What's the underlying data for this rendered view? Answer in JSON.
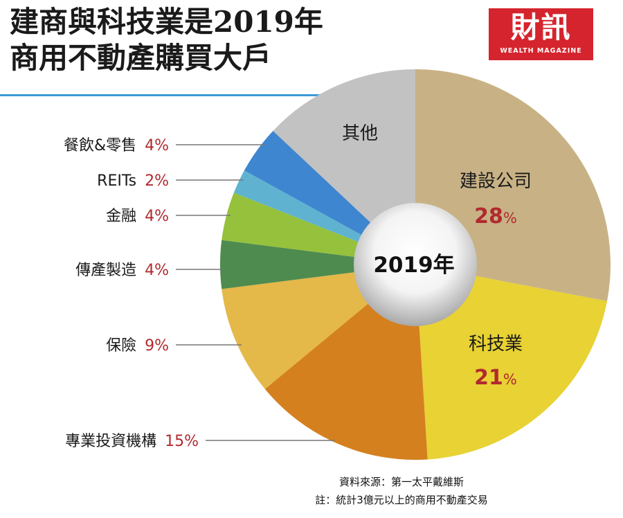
{
  "title_lines": [
    "建商與科技業是2019年",
    "商用不動產購買大戶"
  ],
  "brand": {
    "name": "財訊",
    "subtitle": "WEALTH MAGAZINE",
    "color": "#d5242d"
  },
  "center_label": "2019年",
  "pct_color": "#b02a2f",
  "chart_data": {
    "type": "pie",
    "variant": "donut",
    "slices": [
      {
        "label": "建設公司",
        "value": 28,
        "value_text": "28",
        "unit": "%",
        "color": "#c8b285",
        "label_position": "inside"
      },
      {
        "label": "科技業",
        "value": 21,
        "value_text": "21",
        "unit": "%",
        "color": "#e8d234",
        "label_position": "inside"
      },
      {
        "label": "專業投資機構",
        "value": 15,
        "value_text": "15%",
        "unit": "",
        "color": "#d5801f",
        "label_position": "outside-left"
      },
      {
        "label": "保險",
        "value": 9,
        "value_text": "9%",
        "unit": "",
        "color": "#e5b84a",
        "label_position": "outside-left"
      },
      {
        "label": "傳產製造",
        "value": 4,
        "value_text": "4%",
        "unit": "",
        "color": "#4e8b4f",
        "label_position": "outside-left"
      },
      {
        "label": "金融",
        "value": 4,
        "value_text": "4%",
        "unit": "",
        "color": "#95c13c",
        "label_position": "outside-left"
      },
      {
        "label": "REITs",
        "value": 2,
        "value_text": "2%",
        "unit": "",
        "color": "#5fb3d0",
        "label_position": "outside-left"
      },
      {
        "label": "餐飲&零售",
        "value": 4,
        "value_text": "4%",
        "unit": "",
        "color": "#3f86d0",
        "label_position": "outside-left"
      },
      {
        "label": "其他",
        "value": 13,
        "value_text": "",
        "unit": "",
        "color": "#c2c2c2",
        "label_position": "inside"
      }
    ]
  },
  "source": "資料來源：第一太平戴維斯",
  "note": "註：統計3億元以上的商用不動產交易"
}
